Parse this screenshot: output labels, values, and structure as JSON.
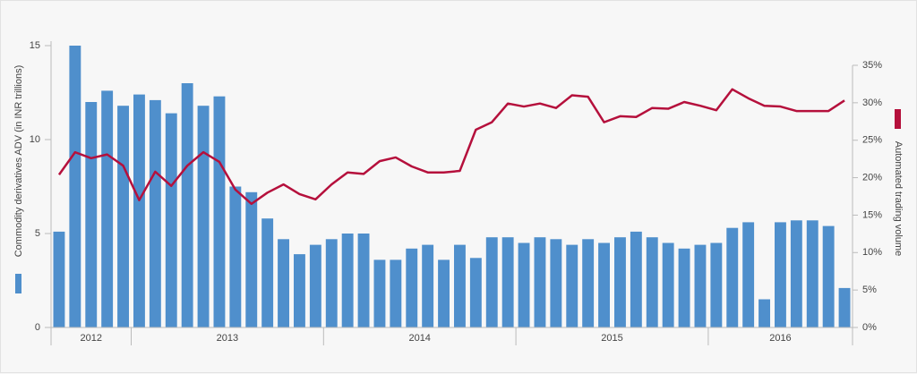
{
  "chart_data": {
    "type": "bar-line",
    "y_label": "Commodity derivatives ADV (in INR trillions)",
    "y2_label": "Automated trading volume",
    "categories": [
      null,
      null,
      null,
      null,
      null,
      null,
      null,
      null,
      null,
      null,
      null,
      null,
      null,
      null,
      null,
      null,
      null,
      null,
      null,
      null,
      null,
      null,
      null,
      null,
      null,
      null,
      null,
      null,
      null,
      null,
      null,
      null,
      null,
      null,
      null,
      null,
      null,
      null,
      null,
      null,
      null,
      null,
      null,
      null,
      null,
      null,
      null,
      null,
      null,
      null
    ],
    "year_groups": [
      {
        "label": "2012",
        "span": 5
      },
      {
        "label": "2013",
        "span": 12
      },
      {
        "label": "2014",
        "span": 12
      },
      {
        "label": "2015",
        "span": 12
      },
      {
        "label": "2016",
        "span": 9
      }
    ],
    "series": [
      {
        "name": "Commodity derivatives ADV (in INR trillions)",
        "kind": "bar",
        "color": "#4f8fcc",
        "values": [
          5.1,
          15.0,
          12.0,
          12.6,
          11.8,
          12.4,
          12.1,
          11.4,
          13.0,
          11.8,
          12.3,
          7.5,
          7.2,
          5.8,
          4.7,
          3.9,
          4.4,
          4.7,
          5.0,
          5.0,
          3.6,
          3.6,
          4.2,
          4.4,
          3.6,
          4.4,
          3.7,
          4.8,
          4.8,
          4.5,
          4.8,
          4.7,
          4.4,
          4.7,
          4.5,
          4.8,
          5.1,
          4.8,
          4.5,
          4.2,
          4.4,
          4.5,
          5.3,
          5.6,
          1.5,
          5.6,
          5.7,
          5.7,
          5.4,
          2.1
        ]
      },
      {
        "name": "Automated trading volume",
        "kind": "line",
        "axis": "y2",
        "color": "#b5103c",
        "values": [
          20.4,
          23.4,
          22.6,
          23.1,
          21.6,
          17.0,
          20.8,
          18.9,
          21.6,
          23.4,
          22.1,
          18.4,
          16.5,
          18.0,
          19.1,
          17.8,
          17.1,
          19.1,
          20.7,
          20.5,
          22.2,
          22.7,
          21.5,
          20.7,
          20.7,
          20.9,
          26.4,
          27.4,
          29.9,
          29.5,
          29.9,
          29.3,
          31.0,
          30.8,
          27.4,
          28.2,
          28.1,
          29.3,
          29.2,
          30.1,
          29.6,
          29.0,
          31.8,
          30.6,
          29.6,
          29.5,
          28.9,
          28.9,
          28.9,
          30.3
        ]
      }
    ],
    "ylim": [
      0,
      15
    ],
    "yticks": [
      0,
      5,
      10,
      15
    ],
    "y2lim": [
      0,
      35
    ],
    "y2ticks": [
      {
        "value": 0,
        "label": "0%"
      },
      {
        "value": 5,
        "label": "5%"
      },
      {
        "value": 10,
        "label": "10%"
      },
      {
        "value": 15,
        "label": "15%"
      },
      {
        "value": 20,
        "label": "20%"
      },
      {
        "value": 25,
        "label": "25%"
      },
      {
        "value": 30,
        "label": "30%"
      },
      {
        "value": 35,
        "label": "35%"
      }
    ]
  }
}
